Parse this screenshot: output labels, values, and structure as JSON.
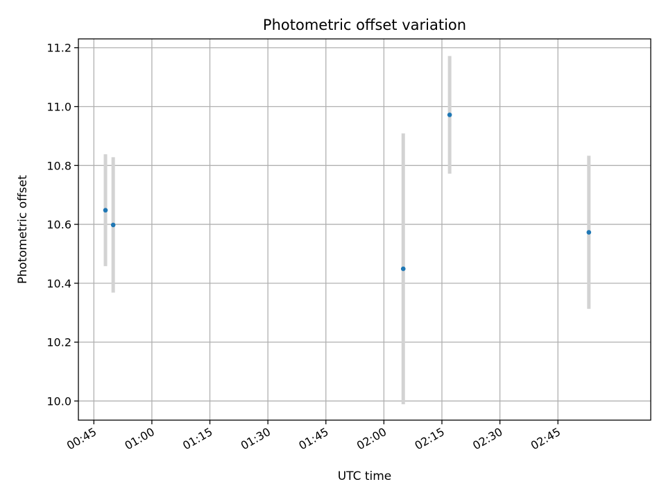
{
  "chart_data": {
    "type": "scatter",
    "title": "Photometric offset variation",
    "xlabel": "UTC time",
    "ylabel": "Photometric offset",
    "x_type": "time",
    "xlim": [
      "00:41",
      "03:09"
    ],
    "ylim": [
      9.935,
      11.23
    ],
    "xticks": [
      "00:45",
      "01:00",
      "01:15",
      "01:30",
      "01:45",
      "02:00",
      "02:15",
      "02:30",
      "02:45"
    ],
    "yticks": [
      "10.0",
      "10.2",
      "10.4",
      "10.6",
      "10.8",
      "11.0",
      "11.2"
    ],
    "grid": true,
    "marker_color": "#1f77b4",
    "errorbar_color": "#d3d3d3",
    "points": [
      {
        "x": "00:48",
        "y": 10.648,
        "err": 0.19
      },
      {
        "x": "00:50",
        "y": 10.598,
        "err": 0.23
      },
      {
        "x": "02:05",
        "y": 10.449,
        "err": 0.46
      },
      {
        "x": "02:17",
        "y": 10.972,
        "err": 0.2
      },
      {
        "x": "02:53",
        "y": 10.573,
        "err": 0.26
      }
    ]
  }
}
